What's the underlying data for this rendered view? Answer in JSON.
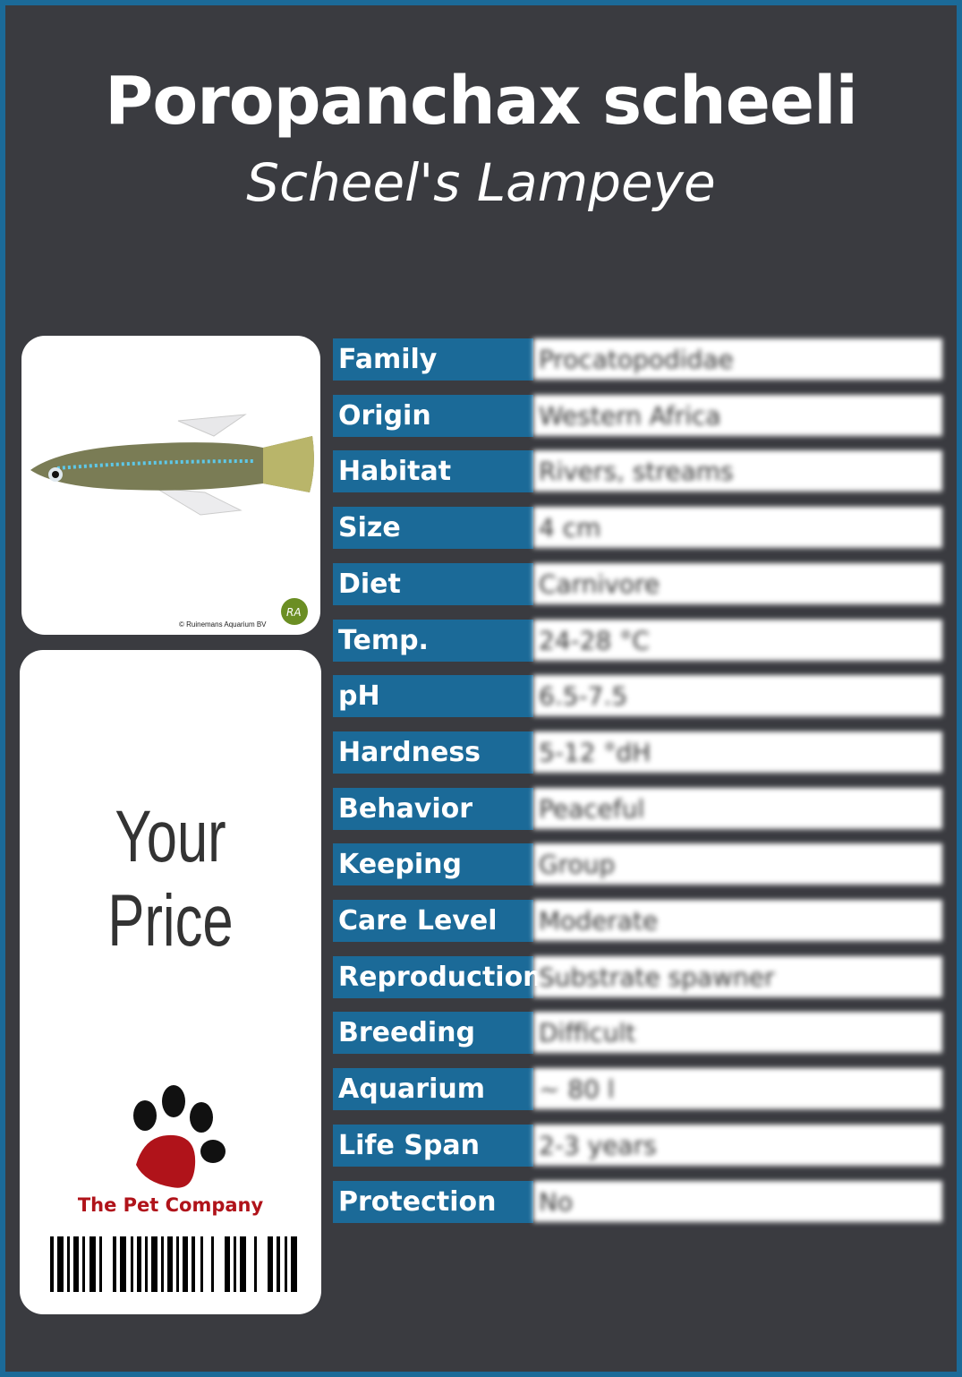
{
  "title": "Poropanchax scheeli",
  "subtitle": "Scheel's Lampeye",
  "photo": {
    "credit": "© Ruinemans Aquarium BV",
    "logo_text": "RA"
  },
  "price": {
    "label": "Your Price"
  },
  "brand": {
    "name": "The Pet Company",
    "color": "#b0131a"
  },
  "colors": {
    "accent": "#1b6a98",
    "background": "#3a3b40"
  },
  "rows": [
    {
      "label": "Family",
      "value": "Procatopodidae"
    },
    {
      "label": "Origin",
      "value": "Western Africa"
    },
    {
      "label": "Habitat",
      "value": "Rivers, streams"
    },
    {
      "label": "Size",
      "value": "4 cm"
    },
    {
      "label": "Diet",
      "value": "Carnivore"
    },
    {
      "label": "Temp.",
      "value": "24-28 °C"
    },
    {
      "label": "pH",
      "value": "6.5-7.5"
    },
    {
      "label": "Hardness",
      "value": "5-12 °dH"
    },
    {
      "label": "Behavior",
      "value": "Peaceful"
    },
    {
      "label": "Keeping",
      "value": "Group"
    },
    {
      "label": "Care Level",
      "value": "Moderate"
    },
    {
      "label": "Reproduction",
      "value": "Substrate spawner"
    },
    {
      "label": "Breeding",
      "value": "Difficult"
    },
    {
      "label": "Aquarium",
      "value": "~ 80 l"
    },
    {
      "label": "Life Span",
      "value": "2-3 years"
    },
    {
      "label": "Protection",
      "value": "No"
    }
  ]
}
